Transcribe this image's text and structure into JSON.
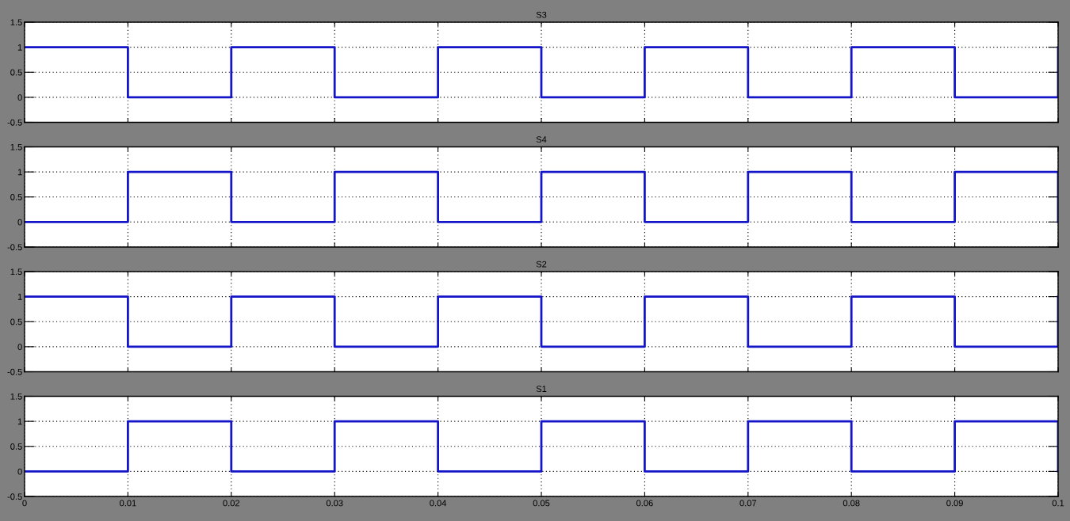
{
  "chart_data": [
    {
      "type": "step",
      "title": "S3",
      "x": [
        0,
        0.01,
        0.02,
        0.03,
        0.04,
        0.05,
        0.06,
        0.07,
        0.08,
        0.09,
        0.1
      ],
      "values": [
        1,
        0,
        1,
        0,
        1,
        0,
        1,
        0,
        1,
        0,
        1
      ],
      "color": "#1414c8",
      "xlim": [
        0,
        0.1
      ],
      "ylim": [
        -0.5,
        1.5
      ],
      "xticks": [
        0,
        0.01,
        0.02,
        0.03,
        0.04,
        0.05,
        0.06,
        0.07,
        0.08,
        0.09,
        0.1
      ],
      "yticks": [
        -0.5,
        0,
        0.5,
        1,
        1.5
      ],
      "grid": true,
      "tick_labels": "y"
    },
    {
      "type": "step",
      "title": "S4",
      "x": [
        0,
        0.01,
        0.02,
        0.03,
        0.04,
        0.05,
        0.06,
        0.07,
        0.08,
        0.09,
        0.1
      ],
      "values": [
        0,
        1,
        0,
        1,
        0,
        1,
        0,
        1,
        0,
        1,
        0
      ],
      "color": "#1414c8",
      "xlim": [
        0,
        0.1
      ],
      "ylim": [
        -0.5,
        1.5
      ],
      "xticks": [
        0,
        0.01,
        0.02,
        0.03,
        0.04,
        0.05,
        0.06,
        0.07,
        0.08,
        0.09,
        0.1
      ],
      "yticks": [
        -0.5,
        0,
        0.5,
        1,
        1.5
      ],
      "grid": true,
      "tick_labels": "y"
    },
    {
      "type": "step",
      "title": "S2",
      "x": [
        0,
        0.01,
        0.02,
        0.03,
        0.04,
        0.05,
        0.06,
        0.07,
        0.08,
        0.09,
        0.1
      ],
      "values": [
        1,
        0,
        1,
        0,
        1,
        0,
        1,
        0,
        1,
        0,
        1
      ],
      "color": "#1414c8",
      "xlim": [
        0,
        0.1
      ],
      "ylim": [
        -0.5,
        1.5
      ],
      "xticks": [
        0,
        0.01,
        0.02,
        0.03,
        0.04,
        0.05,
        0.06,
        0.07,
        0.08,
        0.09,
        0.1
      ],
      "yticks": [
        -0.5,
        0,
        0.5,
        1,
        1.5
      ],
      "grid": true,
      "tick_labels": "y"
    },
    {
      "type": "step",
      "title": "S1",
      "x": [
        0,
        0.01,
        0.02,
        0.03,
        0.04,
        0.05,
        0.06,
        0.07,
        0.08,
        0.09,
        0.1
      ],
      "values": [
        0,
        1,
        0,
        1,
        0,
        1,
        0,
        1,
        0,
        1,
        0
      ],
      "color": "#1414c8",
      "xlim": [
        0,
        0.1
      ],
      "ylim": [
        -0.5,
        1.5
      ],
      "xticks": [
        0,
        0.01,
        0.02,
        0.03,
        0.04,
        0.05,
        0.06,
        0.07,
        0.08,
        0.09,
        0.1
      ],
      "yticks": [
        -0.5,
        0,
        0.5,
        1,
        1.5
      ],
      "grid": true
    }
  ]
}
